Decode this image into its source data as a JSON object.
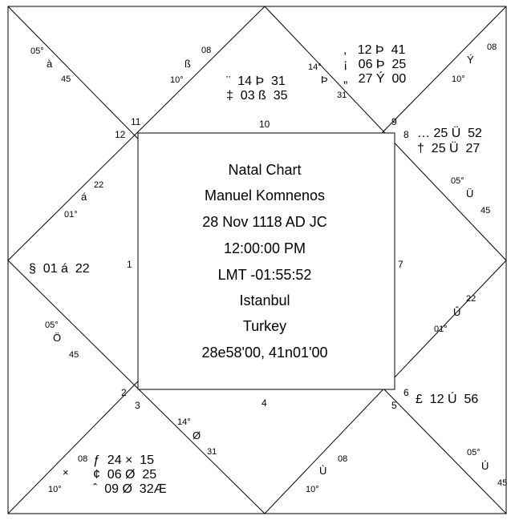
{
  "title_block": [
    "Natal Chart",
    "Manuel Komnenos",
    "28 Nov 1118 AD JC",
    "12:00:00 PM",
    "LMT -01:55:52",
    "Istanbul",
    "Turkey",
    "28e58'00, 41n01'00"
  ],
  "house_numbers": [
    "12",
    "11",
    "10",
    "9",
    "8",
    "1",
    "7",
    "2",
    "3",
    "4",
    "6",
    "5"
  ],
  "cusps": [
    [
      "05°",
      "à",
      "45"
    ],
    [
      "08",
      "ß",
      "10°"
    ],
    [
      "14°",
      "Þ",
      "31"
    ],
    [
      "08",
      "Ý",
      "10°"
    ],
    [
      "22",
      "á",
      "01°"
    ],
    [
      "05°",
      "Ü",
      "45"
    ],
    [
      "05°",
      "Ö",
      "45"
    ],
    [
      "22",
      "Û",
      "01°"
    ],
    [
      "14°",
      "Ø",
      "31"
    ],
    [
      "08",
      "Ù",
      "10°"
    ],
    [
      "05°",
      "Ú",
      "45"
    ],
    [
      "08",
      "×",
      "10°"
    ]
  ],
  "planets": [
    [
      "¨  14 Þ  31",
      "‡  03 ß  35"
    ],
    [
      ",   12 Þ  41",
      "¡   06 Þ  25",
      "„   27 Ý  00"
    ],
    [
      "… 25 Ü  52",
      "†  25 Ü  27"
    ],
    [
      "§  01 á  22"
    ],
    [
      "£  12 Ú  56"
    ],
    [
      "ƒ  24 ×  15",
      "¢  06 Ø  25",
      "ˆ  09 Ø  32Æ"
    ]
  ]
}
